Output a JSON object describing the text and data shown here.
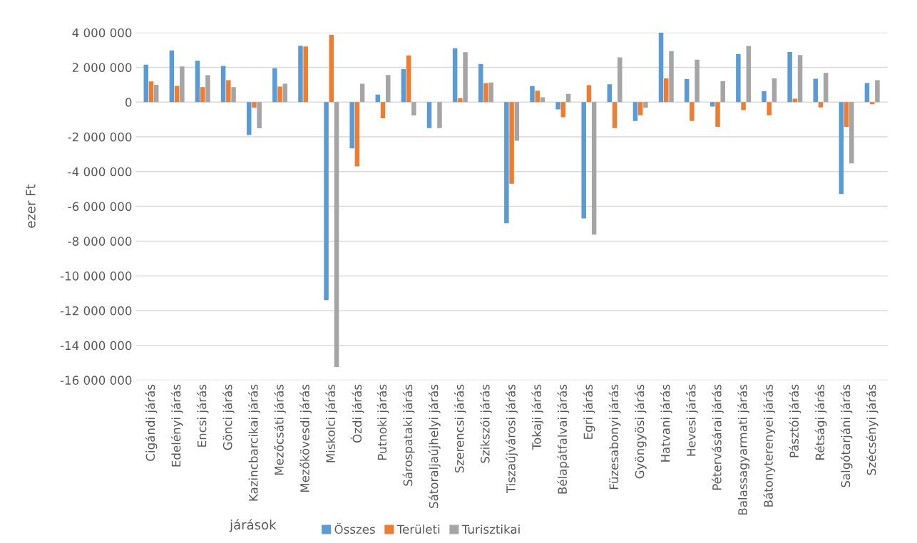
{
  "chart_data": {
    "type": "bar",
    "xlabel": "járások",
    "ylabel": "ezer Ft",
    "categories": [
      "Cigándi járás",
      "Edelényi járás",
      "Encsi járás",
      "Gönci járás",
      "Kazincbarcikai járás",
      "Mezőcsáti járás",
      "Mezőkövesdi járás",
      "Miskolci járás",
      "Ózdi járás",
      "Putnoki járás",
      "Sárospataki járás",
      "Sátoraljaújhelyi járás",
      "Szerencsi járás",
      "Szikszói járás",
      "Tiszaújvárosi járás",
      "Tokaji járás",
      "Bélapátfalvai járás",
      "Egri járás",
      "Füzesabonyi járás",
      "Gyöngyösi járás",
      "Hatvani járás",
      "Hevesi járás",
      "Pétervásárai járás",
      "Balassagyarmati járás",
      "Bátonyterenyei járás",
      "Pásztói járás",
      "Rétsági járás",
      "Salgótarjáni járás",
      "Szécsényi járás"
    ],
    "series": [
      {
        "name": "Összes",
        "color": "#5b9bd5",
        "values": [
          2150000,
          2970000,
          2380000,
          2080000,
          -1900000,
          1950000,
          3240000,
          -11400000,
          -2670000,
          430000,
          1900000,
          -1500000,
          3100000,
          2190000,
          -6970000,
          920000,
          -420000,
          -6690000,
          1030000,
          -1090000,
          4000000,
          1320000,
          -260000,
          2760000,
          630000,
          2880000,
          1340000,
          -5290000,
          1100000
        ]
      },
      {
        "name": "Területi",
        "color": "#ed7d31",
        "values": [
          1190000,
          930000,
          860000,
          1260000,
          -320000,
          890000,
          3200000,
          3870000,
          -3700000,
          -930000,
          2690000,
          0,
          230000,
          1090000,
          -4700000,
          660000,
          -870000,
          970000,
          -1500000,
          -760000,
          1360000,
          -1090000,
          -1420000,
          -460000,
          -760000,
          190000,
          -310000,
          -1420000,
          -120000
        ]
      },
      {
        "name": "Turisztikai",
        "color": "#a5a5a5",
        "values": [
          990000,
          2050000,
          1550000,
          860000,
          -1510000,
          1060000,
          null,
          -15250000,
          1060000,
          1560000,
          -770000,
          -1500000,
          2870000,
          1130000,
          -2220000,
          280000,
          470000,
          -7630000,
          2570000,
          -330000,
          2930000,
          2440000,
          1200000,
          3230000,
          1360000,
          2710000,
          1680000,
          -3530000,
          1260000
        ]
      }
    ],
    "ylim": [
      -16000000,
      4000000
    ],
    "yticks": [
      {
        "value": -16000000,
        "label": "-16 000 000"
      },
      {
        "value": -14000000,
        "label": "-14 000 000"
      },
      {
        "value": -12000000,
        "label": "-12 000 000"
      },
      {
        "value": -10000000,
        "label": "-10 000 000"
      },
      {
        "value": -8000000,
        "label": "-8 000 000"
      },
      {
        "value": -6000000,
        "label": "-6 000 000"
      },
      {
        "value": -4000000,
        "label": "-4 000 000"
      },
      {
        "value": -2000000,
        "label": "-2 000 000"
      },
      {
        "value": 0,
        "label": "0"
      },
      {
        "value": 2000000,
        "label": "2 000 000"
      },
      {
        "value": 4000000,
        "label": "4 000 000"
      }
    ],
    "grid": "y",
    "legend": "bottom"
  }
}
